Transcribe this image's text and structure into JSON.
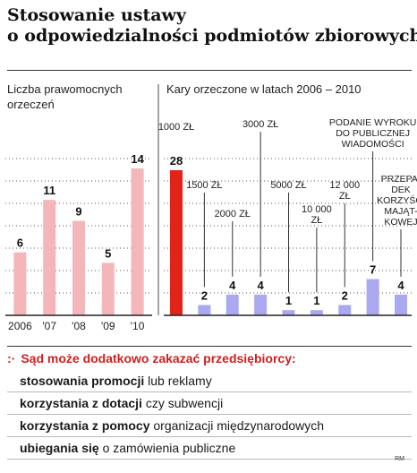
{
  "title_lines": [
    "Stosowanie ustawy",
    "o odpowiedzialności podmiotów zbiorowych"
  ],
  "chart_data": [
    {
      "type": "bar",
      "title_lines": [
        "Liczba prawomocnych",
        "orzeczeń"
      ],
      "categories": [
        "2006",
        "'07",
        "'08",
        "'09",
        "'10"
      ],
      "values": [
        6,
        11,
        9,
        5,
        14
      ],
      "bar_color": "#f4b6b9",
      "ylim": [
        0,
        14
      ],
      "grid": "dotted"
    },
    {
      "type": "bar",
      "title": "Kary orzeczone w latach 2006 – 2010",
      "categories": [
        [
          "1000 ZŁ"
        ],
        [
          "1500 ZŁ"
        ],
        [
          "2000 ZŁ"
        ],
        [
          "3000 ZŁ"
        ],
        [
          "5000 ZŁ"
        ],
        [
          "10 000",
          "ZŁ"
        ],
        [
          "12 000",
          "ZŁ"
        ],
        [
          "PODANIE WYROKU",
          "DO PUBLICZNEJ",
          "WIADOMOŚCI"
        ],
        [
          "PRZEPA-",
          "DEK",
          "KORZYŚCI",
          "MAJĄT-",
          "KOWEJ"
        ]
      ],
      "values": [
        28,
        2,
        4,
        4,
        1,
        1,
        2,
        7,
        4
      ],
      "highlight_color": "#e2231a",
      "bar_color": "#a9a8f0",
      "ylim": [
        0,
        28
      ],
      "grid": "dotted"
    }
  ],
  "extras": {
    "heading": "Sąd może dodatkowo zakazać przedsiębiorcy:",
    "items": [
      {
        "bold": "stosowania promocji",
        "rest": " lub reklamy"
      },
      {
        "bold": "korzystania z dotacji",
        "rest": " czy subwencji"
      },
      {
        "bold": "korzystania z pomocy",
        "rest": " organizacji międzynarodowych"
      },
      {
        "bold": "ubiegania się",
        "rest": " o zamówienia publiczne"
      }
    ]
  },
  "credit": "RM"
}
